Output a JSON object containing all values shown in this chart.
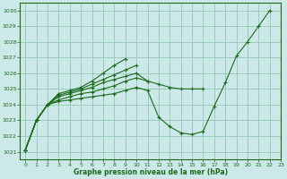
{
  "bg_color": "#cce8e8",
  "grid_color": "#99ccbb",
  "line_color": "#1a6b1a",
  "marker_color": "#1a6b1a",
  "xlabel": "Graphe pression niveau de la mer (hPa)",
  "ylim": [
    1020.5,
    1030.5
  ],
  "xlim": [
    -0.5,
    23
  ],
  "yticks": [
    1021,
    1022,
    1023,
    1024,
    1025,
    1026,
    1027,
    1028,
    1029,
    1030
  ],
  "xticks": [
    0,
    1,
    2,
    3,
    4,
    5,
    6,
    7,
    8,
    9,
    10,
    11,
    12,
    13,
    14,
    15,
    16,
    17,
    18,
    19,
    20,
    21,
    22,
    23
  ],
  "s1_x": [
    0,
    1,
    2,
    3,
    4,
    5,
    6,
    7,
    8,
    9,
    10,
    11,
    12,
    13,
    14,
    15,
    16,
    17,
    18,
    19,
    20,
    21,
    22
  ],
  "s1_y": [
    1021.1,
    1023.0,
    1024.0,
    1024.2,
    1024.3,
    1024.4,
    1024.5,
    1024.6,
    1024.7,
    1024.9,
    1025.1,
    1024.9,
    1023.2,
    1022.6,
    1022.2,
    1022.1,
    1022.3,
    1023.9,
    1025.4,
    1027.1,
    1028.0,
    1029.0,
    1030.0
  ],
  "s2_x": [
    0,
    1,
    2,
    3,
    4,
    5,
    6,
    7,
    8,
    9,
    10,
    11,
    12,
    13,
    14,
    15,
    16
  ],
  "s2_y": [
    1021.1,
    1023.0,
    1024.0,
    1024.3,
    1024.5,
    1024.7,
    1024.8,
    1025.0,
    1025.2,
    1025.5,
    1025.7,
    1025.5,
    1025.3,
    1025.1,
    1025.0,
    1025.0,
    1025.0
  ],
  "s3_x": [
    0,
    1,
    2,
    3,
    4,
    5,
    6,
    7,
    8,
    9,
    10,
    11
  ],
  "s3_y": [
    1021.1,
    1023.0,
    1024.0,
    1024.5,
    1024.7,
    1024.9,
    1025.1,
    1025.4,
    1025.6,
    1025.8,
    1026.0,
    1025.5
  ],
  "s4_x": [
    0,
    1,
    2,
    3,
    4,
    5,
    6,
    7,
    8,
    9,
    10
  ],
  "s4_y": [
    1021.1,
    1023.0,
    1024.0,
    1024.6,
    1024.8,
    1025.0,
    1025.3,
    1025.6,
    1025.9,
    1026.2,
    1026.5
  ],
  "s5_x": [
    0,
    1,
    2,
    3,
    4,
    5,
    6,
    7,
    8,
    9
  ],
  "s5_y": [
    1021.1,
    1023.0,
    1024.0,
    1024.7,
    1024.9,
    1025.1,
    1025.5,
    1026.0,
    1026.5,
    1026.9
  ]
}
